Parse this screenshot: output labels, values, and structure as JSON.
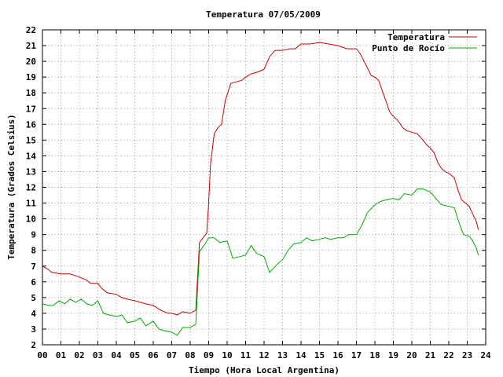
{
  "chart_data": {
    "type": "line",
    "title": "Temperatura 07/05/2009",
    "xlabel": "Tiempo (Hora Local Argentina)",
    "ylabel": "Temperatura (Grados Celsius)",
    "xlim": [
      0,
      24
    ],
    "ylim": [
      2,
      22
    ],
    "x_ticks": [
      "00",
      "01",
      "02",
      "03",
      "04",
      "05",
      "06",
      "07",
      "08",
      "09",
      "10",
      "11",
      "12",
      "13",
      "14",
      "15",
      "16",
      "17",
      "18",
      "19",
      "20",
      "21",
      "22",
      "23",
      "24"
    ],
    "y_ticks": [
      "2",
      "3",
      "4",
      "5",
      "6",
      "7",
      "8",
      "9",
      "10",
      "11",
      "12",
      "13",
      "14",
      "15",
      "16",
      "17",
      "18",
      "19",
      "20",
      "21",
      "22"
    ],
    "grid": true,
    "legend_position": "top-right",
    "series": [
      {
        "name": "Temperatura",
        "color": "#cc0000",
        "points": [
          [
            0.0,
            7.0
          ],
          [
            0.3,
            6.8
          ],
          [
            0.5,
            6.6
          ],
          [
            1.0,
            6.5
          ],
          [
            1.5,
            6.5
          ],
          [
            2.0,
            6.3
          ],
          [
            2.4,
            6.1
          ],
          [
            2.6,
            5.9
          ],
          [
            3.0,
            5.9
          ],
          [
            3.2,
            5.6
          ],
          [
            3.5,
            5.3
          ],
          [
            4.0,
            5.2
          ],
          [
            4.3,
            5.0
          ],
          [
            4.6,
            4.9
          ],
          [
            5.0,
            4.8
          ],
          [
            5.3,
            4.7
          ],
          [
            5.6,
            4.6
          ],
          [
            6.0,
            4.5
          ],
          [
            6.4,
            4.2
          ],
          [
            6.8,
            4.0
          ],
          [
            7.0,
            4.0
          ],
          [
            7.3,
            3.9
          ],
          [
            7.6,
            4.1
          ],
          [
            8.0,
            4.0
          ],
          [
            8.3,
            4.2
          ],
          [
            8.5,
            8.5
          ],
          [
            8.7,
            8.8
          ],
          [
            8.9,
            9.1
          ],
          [
            9.0,
            11.0
          ],
          [
            9.1,
            13.5
          ],
          [
            9.3,
            15.4
          ],
          [
            9.5,
            15.8
          ],
          [
            9.7,
            16.0
          ],
          [
            9.9,
            17.5
          ],
          [
            10.2,
            18.6
          ],
          [
            10.5,
            18.7
          ],
          [
            10.8,
            18.8
          ],
          [
            11.0,
            19.0
          ],
          [
            11.3,
            19.2
          ],
          [
            11.6,
            19.3
          ],
          [
            12.0,
            19.5
          ],
          [
            12.3,
            20.3
          ],
          [
            12.6,
            20.7
          ],
          [
            13.0,
            20.7
          ],
          [
            13.4,
            20.8
          ],
          [
            13.7,
            20.8
          ],
          [
            14.0,
            21.1
          ],
          [
            14.5,
            21.1
          ],
          [
            15.0,
            21.2
          ],
          [
            15.5,
            21.1
          ],
          [
            16.0,
            21.0
          ],
          [
            16.5,
            20.8
          ],
          [
            17.0,
            20.8
          ],
          [
            17.2,
            20.5
          ],
          [
            17.5,
            19.8
          ],
          [
            17.8,
            19.1
          ],
          [
            18.0,
            19.0
          ],
          [
            18.2,
            18.8
          ],
          [
            18.5,
            17.8
          ],
          [
            18.8,
            16.8
          ],
          [
            19.0,
            16.5
          ],
          [
            19.2,
            16.3
          ],
          [
            19.5,
            15.8
          ],
          [
            19.7,
            15.6
          ],
          [
            20.0,
            15.5
          ],
          [
            20.3,
            15.4
          ],
          [
            20.6,
            15.0
          ],
          [
            20.8,
            14.7
          ],
          [
            21.0,
            14.5
          ],
          [
            21.2,
            14.2
          ],
          [
            21.4,
            13.6
          ],
          [
            21.6,
            13.2
          ],
          [
            21.8,
            13.0
          ],
          [
            22.0,
            12.9
          ],
          [
            22.3,
            12.6
          ],
          [
            22.5,
            11.8
          ],
          [
            22.7,
            11.2
          ],
          [
            22.9,
            11.0
          ],
          [
            23.1,
            10.8
          ],
          [
            23.3,
            10.3
          ],
          [
            23.5,
            9.8
          ],
          [
            23.6,
            9.3
          ]
        ]
      },
      {
        "name": "Punto de Rocío",
        "color": "#00aa00",
        "points": [
          [
            0.0,
            4.6
          ],
          [
            0.3,
            4.5
          ],
          [
            0.6,
            4.5
          ],
          [
            0.9,
            4.8
          ],
          [
            1.2,
            4.6
          ],
          [
            1.5,
            4.9
          ],
          [
            1.8,
            4.7
          ],
          [
            2.1,
            4.9
          ],
          [
            2.4,
            4.6
          ],
          [
            2.7,
            4.5
          ],
          [
            3.0,
            4.8
          ],
          [
            3.3,
            4.0
          ],
          [
            3.6,
            3.9
          ],
          [
            4.0,
            3.8
          ],
          [
            4.3,
            3.9
          ],
          [
            4.6,
            3.4
          ],
          [
            5.0,
            3.5
          ],
          [
            5.3,
            3.7
          ],
          [
            5.6,
            3.2
          ],
          [
            6.0,
            3.5
          ],
          [
            6.3,
            3.0
          ],
          [
            6.6,
            2.9
          ],
          [
            7.0,
            2.8
          ],
          [
            7.3,
            2.6
          ],
          [
            7.6,
            3.1
          ],
          [
            8.0,
            3.1
          ],
          [
            8.3,
            3.3
          ],
          [
            8.5,
            7.9
          ],
          [
            8.8,
            8.4
          ],
          [
            9.0,
            8.8
          ],
          [
            9.3,
            8.8
          ],
          [
            9.6,
            8.5
          ],
          [
            10.0,
            8.6
          ],
          [
            10.3,
            7.5
          ],
          [
            10.7,
            7.6
          ],
          [
            11.0,
            7.7
          ],
          [
            11.3,
            8.3
          ],
          [
            11.6,
            7.8
          ],
          [
            12.0,
            7.6
          ],
          [
            12.3,
            6.6
          ],
          [
            12.7,
            7.1
          ],
          [
            13.0,
            7.4
          ],
          [
            13.3,
            8.0
          ],
          [
            13.6,
            8.4
          ],
          [
            14.0,
            8.5
          ],
          [
            14.3,
            8.8
          ],
          [
            14.6,
            8.6
          ],
          [
            15.0,
            8.7
          ],
          [
            15.3,
            8.8
          ],
          [
            15.6,
            8.7
          ],
          [
            16.0,
            8.8
          ],
          [
            16.3,
            8.8
          ],
          [
            16.6,
            9.0
          ],
          [
            17.0,
            9.0
          ],
          [
            17.3,
            9.6
          ],
          [
            17.6,
            10.4
          ],
          [
            18.0,
            10.9
          ],
          [
            18.3,
            11.1
          ],
          [
            18.6,
            11.2
          ],
          [
            19.0,
            11.3
          ],
          [
            19.3,
            11.2
          ],
          [
            19.6,
            11.6
          ],
          [
            20.0,
            11.5
          ],
          [
            20.3,
            11.9
          ],
          [
            20.6,
            11.9
          ],
          [
            21.0,
            11.7
          ],
          [
            21.3,
            11.3
          ],
          [
            21.6,
            10.9
          ],
          [
            22.0,
            10.8
          ],
          [
            22.3,
            10.7
          ],
          [
            22.6,
            9.6
          ],
          [
            22.8,
            9.0
          ],
          [
            23.1,
            8.9
          ],
          [
            23.3,
            8.6
          ],
          [
            23.5,
            8.1
          ],
          [
            23.6,
            7.7
          ]
        ]
      }
    ]
  }
}
